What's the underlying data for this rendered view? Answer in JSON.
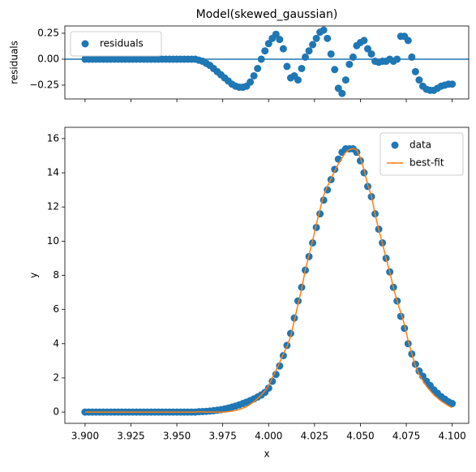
{
  "chart_data": [
    {
      "type": "scatter",
      "title": "Model(skewed_gaussian)",
      "y_label": "residuals",
      "legend": "upper left",
      "x": [
        3.9,
        3.902,
        3.904,
        3.906,
        3.908,
        3.91,
        3.912,
        3.914,
        3.916,
        3.918,
        3.92,
        3.922,
        3.924,
        3.926,
        3.928,
        3.93,
        3.932,
        3.934,
        3.936,
        3.938,
        3.94,
        3.942,
        3.944,
        3.946,
        3.948,
        3.95,
        3.952,
        3.954,
        3.956,
        3.958,
        3.96,
        3.962,
        3.964,
        3.966,
        3.968,
        3.97,
        3.972,
        3.974,
        3.976,
        3.978,
        3.98,
        3.982,
        3.984,
        3.986,
        3.988,
        3.99,
        3.992,
        3.994,
        3.996,
        3.998,
        4.0,
        4.002,
        4.004,
        4.006,
        4.008,
        4.01,
        4.012,
        4.014,
        4.016,
        4.018,
        4.02,
        4.022,
        4.024,
        4.026,
        4.028,
        4.03,
        4.032,
        4.034,
        4.036,
        4.038,
        4.04,
        4.042,
        4.044,
        4.046,
        4.048,
        4.05,
        4.052,
        4.054,
        4.056,
        4.058,
        4.06,
        4.062,
        4.064,
        4.066,
        4.068,
        4.07,
        4.072,
        4.074,
        4.076,
        4.078,
        4.08,
        4.082,
        4.084,
        4.086,
        4.088,
        4.09,
        4.092,
        4.094,
        4.096,
        4.098,
        4.1
      ],
      "series": [
        {
          "name": "residuals",
          "color": "#1f77b4",
          "values": [
            0,
            0,
            0,
            0,
            0,
            0,
            0,
            0,
            0,
            0,
            0,
            0,
            0,
            0,
            0,
            0,
            0,
            0,
            0,
            0,
            0,
            0,
            0,
            0,
            0,
            0,
            0,
            0,
            0,
            0,
            0,
            -0.01,
            -0.02,
            -0.04,
            -0.06,
            -0.09,
            -0.12,
            -0.15,
            -0.18,
            -0.21,
            -0.24,
            -0.26,
            -0.27,
            -0.27,
            -0.26,
            -0.22,
            -0.16,
            -0.09,
            0,
            0.08,
            0.15,
            0.2,
            0.24,
            0.19,
            0.1,
            -0.07,
            -0.18,
            -0.16,
            -0.2,
            -0.09,
            0.02,
            0.08,
            0.14,
            0.2,
            0.26,
            0.28,
            0.2,
            0.05,
            -0.1,
            -0.28,
            -0.33,
            -0.2,
            -0.05,
            0.02,
            0.13,
            0.16,
            0.18,
            0.1,
            0.05,
            -0.02,
            -0.03,
            -0.02,
            -0.02,
            0,
            -0.02,
            0,
            0.22,
            0.22,
            0.18,
            0.02,
            -0.12,
            -0.2,
            -0.26,
            -0.29,
            -0.3,
            -0.3,
            -0.28,
            -0.26,
            -0.25,
            -0.24,
            -0.24
          ]
        }
      ],
      "hline": 0,
      "hline_color": "#1f77b4",
      "xlim": [
        3.889,
        4.109
      ],
      "xticks": [
        3.9,
        3.925,
        3.95,
        3.975,
        4.0,
        4.025,
        4.05,
        4.075,
        4.1
      ],
      "ylim": [
        -0.383,
        0.32
      ],
      "yticks": [
        {
          "value": -0.25,
          "label": "−0.25"
        },
        {
          "value": 0,
          "label": "0.00"
        },
        {
          "value": 0.25,
          "label": "0.25"
        }
      ]
    },
    {
      "type": "line",
      "x_label": "x",
      "y_label": "y",
      "legend": "upper right",
      "x": [
        3.9,
        3.902,
        3.904,
        3.906,
        3.908,
        3.91,
        3.912,
        3.914,
        3.916,
        3.918,
        3.92,
        3.922,
        3.924,
        3.926,
        3.928,
        3.93,
        3.932,
        3.934,
        3.936,
        3.938,
        3.94,
        3.942,
        3.944,
        3.946,
        3.948,
        3.95,
        3.952,
        3.954,
        3.956,
        3.958,
        3.96,
        3.962,
        3.964,
        3.966,
        3.968,
        3.97,
        3.972,
        3.974,
        3.976,
        3.978,
        3.98,
        3.982,
        3.984,
        3.986,
        3.988,
        3.99,
        3.992,
        3.994,
        3.996,
        3.998,
        4.0,
        4.002,
        4.004,
        4.006,
        4.008,
        4.01,
        4.012,
        4.014,
        4.016,
        4.018,
        4.02,
        4.022,
        4.024,
        4.026,
        4.028,
        4.03,
        4.032,
        4.034,
        4.036,
        4.038,
        4.04,
        4.042,
        4.044,
        4.046,
        4.048,
        4.05,
        4.052,
        4.054,
        4.056,
        4.058,
        4.06,
        4.062,
        4.064,
        4.066,
        4.068,
        4.07,
        4.072,
        4.074,
        4.076,
        4.078,
        4.08,
        4.082,
        4.084,
        4.086,
        4.088,
        4.09,
        4.092,
        4.094,
        4.096,
        4.098,
        4.1
      ],
      "series": [
        {
          "name": "data",
          "type": "scatter",
          "color": "#1f77b4",
          "values": [
            0,
            0,
            0,
            0,
            0,
            0,
            0,
            0,
            0,
            0,
            0,
            0,
            0,
            0,
            0,
            0,
            0,
            0,
            0,
            0,
            0,
            0,
            0,
            0,
            0,
            0,
            0,
            0,
            0,
            0,
            0,
            0.02,
            0.03,
            0.04,
            0.06,
            0.08,
            0.11,
            0.14,
            0.18,
            0.23,
            0.29,
            0.35,
            0.42,
            0.5,
            0.58,
            0.67,
            0.77,
            0.88,
            1.0,
            1.15,
            1.4,
            1.8,
            2.2,
            2.7,
            3.3,
            3.9,
            4.6,
            5.5,
            6.5,
            7.3,
            8.3,
            9.1,
            9.9,
            10.8,
            11.6,
            12.4,
            13.0,
            13.6,
            14.2,
            14.8,
            15.2,
            15.4,
            15.4,
            15.4,
            15.2,
            14.7,
            14.0,
            13.2,
            12.6,
            11.6,
            10.7,
            9.9,
            9.0,
            8.2,
            7.3,
            6.5,
            5.6,
            4.9,
            4.0,
            3.4,
            2.8,
            2.4,
            2.1,
            1.8,
            1.55,
            1.3,
            1.1,
            0.9,
            0.75,
            0.6,
            0.5
          ]
        },
        {
          "name": "best-fit",
          "type": "line",
          "color": "#ff7f0e",
          "values": [
            0,
            0,
            0,
            0,
            0,
            0,
            0,
            0,
            0,
            0,
            0,
            0,
            0,
            0,
            0,
            0,
            0,
            0,
            0,
            0,
            0,
            0,
            0,
            0,
            0,
            0,
            0,
            0,
            0,
            0,
            0,
            0.01,
            0.01,
            0,
            0,
            0,
            0,
            0,
            0,
            0.02,
            0.05,
            0.09,
            0.15,
            0.23,
            0.32,
            0.45,
            0.61,
            0.79,
            1.0,
            1.23,
            1.55,
            2.0,
            2.44,
            2.89,
            3.4,
            3.83,
            4.42,
            5.34,
            6.3,
            7.21,
            8.32,
            9.18,
            10.04,
            11.0,
            11.86,
            12.68,
            13.2,
            13.65,
            14.1,
            14.52,
            14.87,
            15.2,
            15.35,
            15.42,
            15.33,
            14.86,
            14.18,
            13.3,
            12.65,
            11.58,
            10.67,
            9.88,
            8.98,
            8.2,
            7.28,
            6.5,
            5.82,
            5.12,
            4.18,
            3.42,
            2.68,
            2.2,
            1.84,
            1.51,
            1.25,
            1.0,
            0.82,
            0.64,
            0.5,
            0.36,
            0.26
          ]
        }
      ],
      "xlim": [
        3.889,
        4.109
      ],
      "xticks": [
        {
          "value": 3.9,
          "label": "3.900"
        },
        {
          "value": 3.925,
          "label": "3.925"
        },
        {
          "value": 3.95,
          "label": "3.950"
        },
        {
          "value": 3.975,
          "label": "3.975"
        },
        {
          "value": 4.0,
          "label": "4.000"
        },
        {
          "value": 4.025,
          "label": "4.025"
        },
        {
          "value": 4.05,
          "label": "4.050"
        },
        {
          "value": 4.075,
          "label": "4.075"
        },
        {
          "value": 4.1,
          "label": "4.100"
        }
      ],
      "ylim": [
        -0.66,
        16.66
      ],
      "yticks": [
        0,
        2,
        4,
        6,
        8,
        10,
        12,
        14,
        16
      ]
    }
  ]
}
